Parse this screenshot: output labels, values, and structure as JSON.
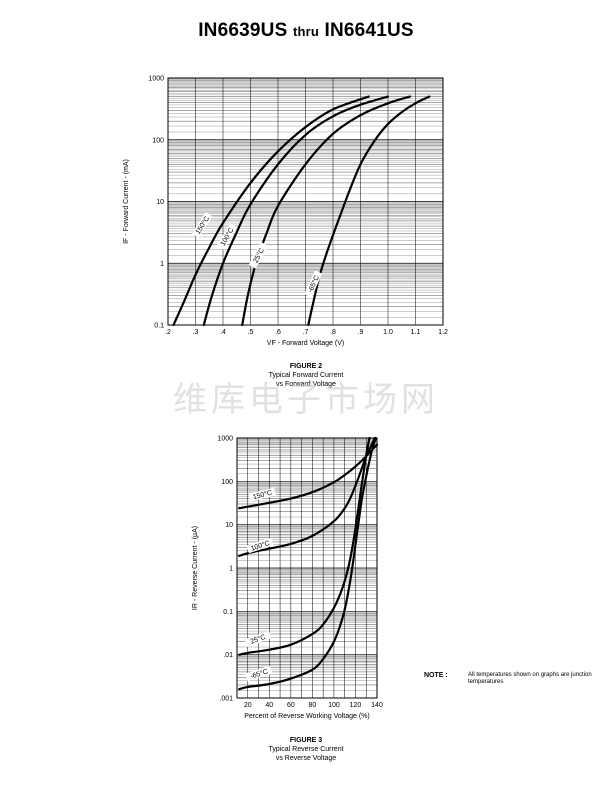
{
  "page": {
    "title_main1": "IN6639US",
    "title_thru": "thru",
    "title_main2": "IN6641US",
    "watermark": "维库电子市场网",
    "note_label": "NOTE :",
    "note_text": "All temperatures shown on graphs are junction temperatures"
  },
  "chart_data": [
    {
      "type": "line",
      "caption": [
        "FIGURE 2",
        "Typical Forward Current",
        "vs Forward Voltage"
      ],
      "xlabel": "VF - Forward Voltage (V)",
      "ylabel": "IF - Forward Current - (mA)",
      "xlim": [
        0.2,
        1.2
      ],
      "ylim": [
        0.1,
        1000
      ],
      "yscale": "log",
      "grid": true,
      "x_ticks": [
        ".2",
        ".3",
        ".4",
        ".5",
        ".6",
        ".7",
        ".8",
        ".9",
        "1.0",
        "1.1",
        "1.2"
      ],
      "y_ticks": [
        "0.1",
        "1",
        "10",
        "100",
        "1000"
      ],
      "series": [
        {
          "name": "150°C",
          "x": [
            0.22,
            0.26,
            0.3,
            0.35,
            0.4,
            0.5,
            0.6,
            0.7,
            0.8,
            0.93
          ],
          "y": [
            0.1,
            0.25,
            0.65,
            1.8,
            4.5,
            20,
            65,
            160,
            310,
            500
          ]
        },
        {
          "name": "100°C",
          "x": [
            0.33,
            0.36,
            0.4,
            0.45,
            0.5,
            0.6,
            0.7,
            0.8,
            0.9,
            1.0
          ],
          "y": [
            0.1,
            0.3,
            1.0,
            3.2,
            9,
            40,
            120,
            240,
            370,
            500
          ]
        },
        {
          "name": "25°C",
          "x": [
            0.47,
            0.49,
            0.52,
            0.56,
            0.6,
            0.7,
            0.8,
            0.9,
            1.0,
            1.08
          ],
          "y": [
            0.1,
            0.3,
            1.0,
            3.2,
            8.5,
            40,
            125,
            250,
            390,
            500
          ]
        },
        {
          "name": "-65°C",
          "x": [
            0.71,
            0.73,
            0.75,
            0.78,
            0.82,
            0.86,
            0.9,
            0.95,
            1.0,
            1.05,
            1.1,
            1.15
          ],
          "y": [
            0.1,
            0.25,
            0.6,
            1.6,
            5,
            15,
            40,
            95,
            180,
            280,
            390,
            500
          ]
        }
      ],
      "curve_labels": [
        "150°C",
        "100°C",
        "25°C",
        "-65°C"
      ]
    },
    {
      "type": "line",
      "caption": [
        "FIGURE 3",
        "Typical Reverse Current",
        "vs Reverse Voltage"
      ],
      "xlabel": "Percent of Reverse Working Voltage (%)",
      "ylabel": "IR - Reverse Current - (µA)",
      "xlim": [
        10,
        140
      ],
      "ylim": [
        0.001,
        1000
      ],
      "yscale": "log",
      "grid": true,
      "x_ticks": [
        "20",
        "40",
        "60",
        "80",
        "100",
        "120",
        "140"
      ],
      "y_ticks": [
        ".001",
        ".01",
        "0.1",
        "1",
        "10",
        "100",
        "1000"
      ],
      "series": [
        {
          "name": "150°C",
          "x": [
            12,
            20,
            40,
            60,
            80,
            100,
            110,
            120,
            130,
            135,
            140
          ],
          "y": [
            24,
            26,
            32,
            40,
            56,
            95,
            140,
            220,
            380,
            520,
            700
          ]
        },
        {
          "name": "100°C",
          "x": [
            12,
            20,
            40,
            60,
            80,
            100,
            110,
            115,
            120,
            125,
            130,
            135,
            138
          ],
          "y": [
            1.9,
            2.2,
            2.8,
            3.6,
            5.5,
            12,
            24,
            40,
            80,
            170,
            380,
            700,
            1000
          ]
        },
        {
          "name": "25°C",
          "x": [
            12,
            20,
            40,
            60,
            80,
            90,
            100,
            108,
            114,
            118,
            121,
            124,
            127,
            130,
            133
          ],
          "y": [
            0.01,
            0.011,
            0.013,
            0.017,
            0.03,
            0.05,
            0.12,
            0.35,
            1.2,
            4,
            12,
            40,
            130,
            400,
            1000
          ]
        },
        {
          "name": "-65°C",
          "x": [
            12,
            20,
            40,
            60,
            80,
            90,
            100,
            108,
            113,
            117,
            120,
            123,
            126,
            130,
            133,
            136,
            139
          ],
          "y": [
            0.0016,
            0.0018,
            0.0021,
            0.0028,
            0.0045,
            0.008,
            0.02,
            0.07,
            0.25,
            1,
            3.5,
            12,
            40,
            130,
            300,
            600,
            1000
          ]
        }
      ],
      "curve_labels": [
        "150°C",
        "100°C",
        "25°C",
        "-65°C"
      ]
    }
  ]
}
